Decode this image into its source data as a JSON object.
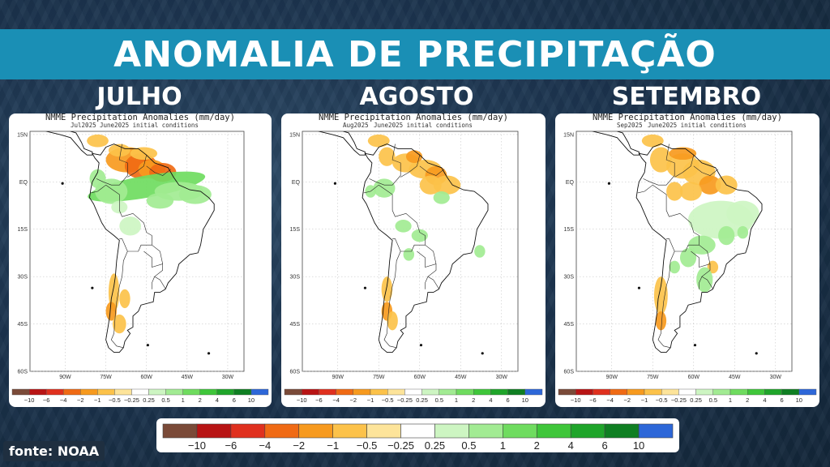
{
  "banner": {
    "title": "ANOMALIA DE PRECIPITAÇÃO"
  },
  "months": [
    {
      "label": "JULHO",
      "map_title": "NMME Precipitation Anomalies (mm/day)",
      "target": "Jul2025",
      "init": "June2025 initial conditions"
    },
    {
      "label": "AGOSTO",
      "map_title": "NMME Precipitation Anomalies (mm/day)",
      "target": "Aug2025",
      "init": "June2025 initial conditions"
    },
    {
      "label": "SETEMBRO",
      "map_title": "NMME Precipitation Anomalies (mm/day)",
      "target": "Sep2025",
      "init": "June2025 initial conditions"
    }
  ],
  "axes": {
    "lat_ticks": [
      "15N",
      "EQ",
      "15S",
      "30S",
      "45S",
      "60S"
    ],
    "lon_ticks": [
      "90W",
      "75W",
      "60W",
      "45W",
      "30W"
    ]
  },
  "legend": {
    "labels": [
      "−10",
      "−6",
      "−4",
      "−2",
      "−1",
      "−0.5",
      "−0.25",
      "0.25",
      "0.5",
      "1",
      "2",
      "4",
      "6",
      "10"
    ],
    "colors": [
      "#7a4a38",
      "#b81414",
      "#e0301e",
      "#f06a14",
      "#f79a1e",
      "#fcc24a",
      "#fde49a",
      "#ffffff",
      "#cdf5c2",
      "#a2eb93",
      "#6fdc5f",
      "#3fc63a",
      "#1fa52a",
      "#0f7f22",
      "#2d67d8"
    ]
  },
  "source": {
    "text": "fonte: NOAA"
  }
}
